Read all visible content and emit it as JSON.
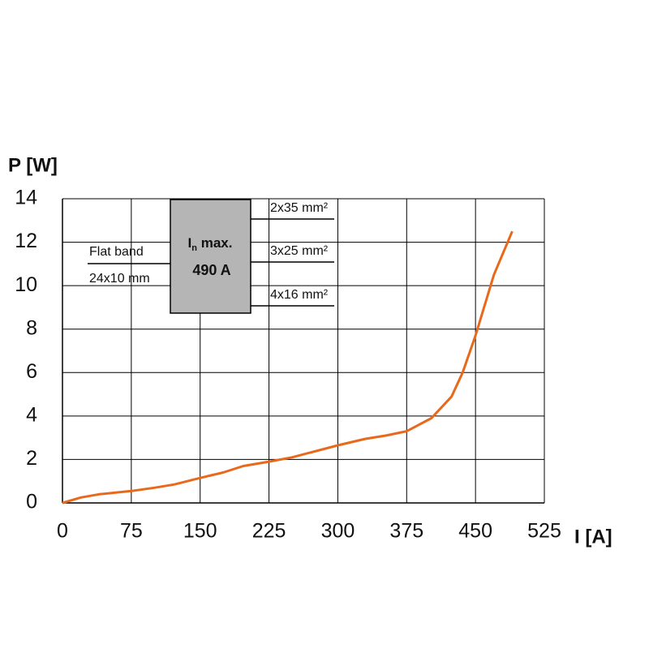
{
  "chart_data": {
    "type": "line",
    "y_label": "P [W]",
    "x_label": "I [A]",
    "x": [
      0,
      20,
      40,
      75,
      100,
      122,
      150,
      175,
      197,
      225,
      250,
      300,
      330,
      352,
      375,
      402,
      424,
      436,
      450,
      470,
      490
    ],
    "values": [
      0,
      0.25,
      0.4,
      0.55,
      0.7,
      0.85,
      1.15,
      1.4,
      1.7,
      1.9,
      2.1,
      2.65,
      2.95,
      3.1,
      3.3,
      3.9,
      4.9,
      6,
      7.7,
      10.5,
      12.5
    ],
    "color": "#e8691c",
    "xlim": [
      0,
      525
    ],
    "xticks": [
      0,
      75,
      150,
      225,
      300,
      375,
      450,
      525
    ],
    "ylim": [
      0,
      14
    ],
    "yticks": [
      0,
      2,
      4,
      6,
      8,
      10,
      12,
      14
    ],
    "grid": true,
    "inset": {
      "box_label": [
        "I",
        "n",
        " max."
      ],
      "box_value": "490 A",
      "left_labels": [
        "Flat band",
        "24x10 mm"
      ],
      "right_labels": [
        "2x35 mm²",
        "3x25 mm²",
        "4x16 mm²"
      ]
    }
  }
}
